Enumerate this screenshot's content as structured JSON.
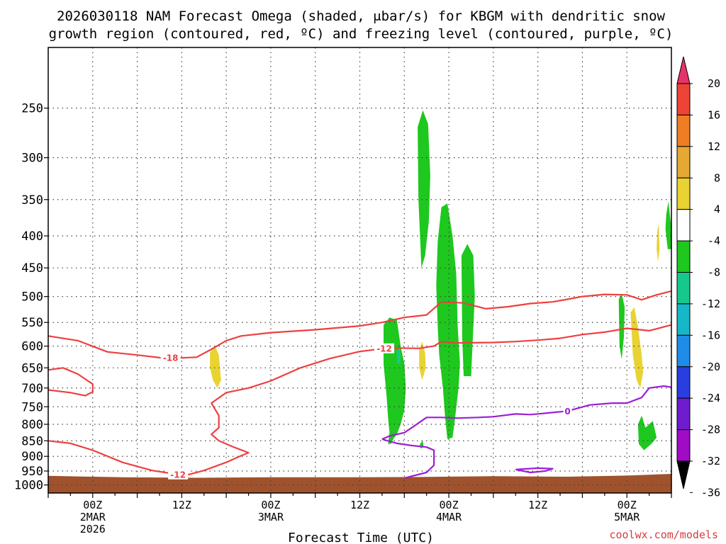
{
  "chart_data": {
    "type": "contour",
    "title": [
      "2026030118 NAM Forecast Omega (shaded, μbar/s) for KBGM with dendritic snow",
      "growth region (contoured, red, ºC) and freezing level (contoured, purple, ºC)"
    ],
    "xlabel": "Forecast Time (UTC)",
    "watermark": "coolwx.com/models",
    "y_axis": {
      "type": "pressure",
      "units": "hPa",
      "range": [
        200,
        1030
      ],
      "ticks": [
        250,
        300,
        350,
        400,
        450,
        500,
        550,
        600,
        650,
        700,
        750,
        800,
        850,
        900,
        950,
        1000
      ]
    },
    "x_axis": {
      "units": "hours since 2026-03-01 18Z",
      "range": [
        0,
        84
      ],
      "ticks": [
        {
          "hour": 6,
          "lines": [
            "00Z",
            "2MAR",
            "2026"
          ]
        },
        {
          "hour": 18,
          "lines": [
            "12Z"
          ]
        },
        {
          "hour": 30,
          "lines": [
            "00Z",
            "3MAR"
          ]
        },
        {
          "hour": 42,
          "lines": [
            "12Z"
          ]
        },
        {
          "hour": 54,
          "lines": [
            "00Z",
            "4MAR"
          ]
        },
        {
          "hour": 66,
          "lines": [
            "12Z"
          ]
        },
        {
          "hour": 78,
          "lines": [
            "00Z",
            "5MAR"
          ]
        }
      ]
    },
    "colorbar": {
      "labels": [
        "20",
        "16",
        "12",
        "8",
        "4",
        "-4",
        "-8",
        "-12",
        "-16",
        "-20",
        "-24",
        "-28",
        "-32",
        "-36"
      ],
      "colors": [
        "#e8336a",
        "#ee4435",
        "#ef7d22",
        "#e5a833",
        "#e8d333",
        "#ffffff",
        "#1ec81e",
        "#17c88c",
        "#16b7c8",
        "#1f8ce8",
        "#2a3ee0",
        "#6f1ccf",
        "#a00bc6",
        "#a6a6a6",
        "#000000"
      ]
    },
    "series": [
      {
        "name": "-18",
        "color": "#ee4040",
        "label_at": [
          16.5,
          626
        ],
        "points": [
          [
            0,
            578
          ],
          [
            4,
            588
          ],
          [
            8,
            613
          ],
          [
            12,
            620
          ],
          [
            16,
            628
          ],
          [
            20,
            625
          ],
          [
            22,
            607
          ],
          [
            24,
            588
          ],
          [
            26,
            578
          ],
          [
            30,
            571
          ],
          [
            36,
            565
          ],
          [
            42,
            557
          ],
          [
            45,
            550
          ],
          [
            48,
            540
          ],
          [
            51,
            535
          ],
          [
            53,
            510
          ],
          [
            56,
            512
          ],
          [
            59,
            523
          ],
          [
            62,
            519
          ],
          [
            65,
            513
          ],
          [
            68,
            510
          ],
          [
            70,
            505
          ],
          [
            72,
            500
          ],
          [
            75,
            496
          ],
          [
            78,
            497
          ],
          [
            80,
            506
          ],
          [
            82,
            497
          ],
          [
            84,
            490
          ]
        ]
      },
      {
        "name": "-12",
        "color": "#ee4040",
        "label_at": [
          45.3,
          605
        ],
        "points": [
          [
            0,
            850
          ],
          [
            3,
            858
          ],
          [
            6,
            880
          ],
          [
            10,
            920
          ],
          [
            14,
            948
          ],
          [
            17,
            960
          ],
          [
            19,
            962
          ],
          [
            21,
            948
          ],
          [
            24,
            920
          ],
          [
            26,
            898
          ],
          [
            27,
            888
          ],
          [
            25,
            870
          ],
          [
            23,
            850
          ],
          [
            22,
            830
          ],
          [
            23,
            810
          ],
          [
            23,
            775
          ],
          [
            22,
            740
          ],
          [
            24,
            712
          ],
          [
            27,
            700
          ],
          [
            30,
            682
          ],
          [
            34,
            650
          ],
          [
            38,
            628
          ],
          [
            42,
            612
          ],
          [
            44,
            608
          ],
          [
            46,
            604
          ],
          [
            50,
            605
          ],
          [
            52,
            600
          ],
          [
            53,
            590
          ],
          [
            55,
            593
          ],
          [
            60,
            592
          ],
          [
            63,
            590
          ],
          [
            66,
            587
          ],
          [
            69,
            583
          ],
          [
            72,
            575
          ],
          [
            75,
            570
          ],
          [
            78,
            562
          ],
          [
            81,
            567
          ],
          [
            84,
            555
          ]
        ]
      },
      {
        "name": "-12",
        "color": "#ee4040",
        "label_at": [
          17.5,
          962
        ],
        "points": [
          [
            0,
            655
          ],
          [
            2,
            650
          ],
          [
            4,
            665
          ],
          [
            6,
            690
          ],
          [
            6,
            710
          ],
          [
            5,
            720
          ],
          [
            3,
            712
          ],
          [
            0,
            705
          ]
        ]
      },
      {
        "name": "0",
        "color": "#9c1fd6",
        "label_at": [
          70,
          762
        ],
        "points": [
          [
            45,
            845
          ],
          [
            46,
            835
          ],
          [
            48,
            825
          ],
          [
            49,
            810
          ],
          [
            51,
            780
          ],
          [
            53,
            780
          ],
          [
            55,
            782
          ],
          [
            58,
            780
          ],
          [
            60,
            778
          ],
          [
            63,
            770
          ],
          [
            65,
            772
          ],
          [
            67,
            768
          ],
          [
            70,
            762
          ],
          [
            73,
            745
          ],
          [
            76,
            740
          ],
          [
            78,
            740
          ],
          [
            80,
            725
          ],
          [
            81,
            700
          ],
          [
            83,
            695
          ],
          [
            84,
            698
          ]
        ]
      },
      {
        "name": "0",
        "color": "#9c1fd6",
        "label_at": null,
        "points": [
          [
            45,
            845
          ],
          [
            47,
            858
          ],
          [
            49,
            865
          ],
          [
            51,
            870
          ],
          [
            52,
            880
          ],
          [
            52,
            900
          ],
          [
            52,
            930
          ],
          [
            51,
            955
          ],
          [
            48,
            975
          ]
        ]
      },
      {
        "name": "0",
        "color": "#9c1fd6",
        "label_at": null,
        "points": [
          [
            63,
            945
          ],
          [
            66,
            940
          ],
          [
            68,
            942
          ],
          [
            67,
            950
          ],
          [
            65,
            955
          ],
          [
            63,
            945
          ]
        ]
      }
    ],
    "regions": [
      {
        "value": -6,
        "color": "#1ec81e",
        "points": [
          [
            49.8,
            268
          ],
          [
            50.5,
            252
          ],
          [
            51.2,
            265
          ],
          [
            51.5,
            320
          ],
          [
            51.3,
            380
          ],
          [
            50.8,
            430
          ],
          [
            50.3,
            450
          ],
          [
            49.9,
            350
          ]
        ]
      },
      {
        "value": -6,
        "color": "#1ec81e",
        "points": [
          [
            52.5,
            408
          ],
          [
            53.0,
            360
          ],
          [
            53.8,
            355
          ],
          [
            54.5,
            400
          ],
          [
            55.0,
            460
          ],
          [
            55.2,
            560
          ],
          [
            55.5,
            640
          ],
          [
            55.3,
            700
          ],
          [
            54.8,
            790
          ],
          [
            54.5,
            840
          ],
          [
            53.8,
            845
          ],
          [
            53.5,
            780
          ],
          [
            53.2,
            700
          ],
          [
            52.7,
            620
          ],
          [
            52.5,
            560
          ],
          [
            52.3,
            480
          ]
        ]
      },
      {
        "value": -6,
        "color": "#1ec81e",
        "points": [
          [
            55.7,
            430
          ],
          [
            56.5,
            412
          ],
          [
            57.3,
            430
          ],
          [
            57.5,
            500
          ],
          [
            57.3,
            560
          ],
          [
            57.0,
            670
          ],
          [
            56.0,
            670
          ],
          [
            55.8,
            580
          ]
        ]
      },
      {
        "value": -6,
        "color": "#1ec81e",
        "points": [
          [
            45.2,
            555
          ],
          [
            46.0,
            540
          ],
          [
            47.0,
            545
          ],
          [
            47.5,
            600
          ],
          [
            48.0,
            640
          ],
          [
            48.2,
            700
          ],
          [
            48.0,
            760
          ],
          [
            47.5,
            800
          ],
          [
            47.0,
            830
          ],
          [
            46.5,
            845
          ],
          [
            46.2,
            860
          ],
          [
            45.8,
            860
          ],
          [
            46.0,
            825
          ],
          [
            45.8,
            780
          ],
          [
            45.6,
            720
          ],
          [
            45.2,
            640
          ]
        ]
      },
      {
        "value": -6,
        "color": "#1ec81e",
        "points": [
          [
            50.1,
            860
          ],
          [
            50.5,
            850
          ],
          [
            50.6,
            870
          ],
          [
            50.2,
            875
          ]
        ]
      },
      {
        "value": -6,
        "color": "#1ec81e",
        "points": [
          [
            76.9,
            505
          ],
          [
            77.3,
            495
          ],
          [
            77.7,
            520
          ],
          [
            77.6,
            580
          ],
          [
            77.3,
            630
          ],
          [
            77.0,
            600
          ]
        ]
      },
      {
        "value": -6,
        "color": "#1ec81e",
        "points": [
          [
            83.3,
            370
          ],
          [
            83.6,
            352
          ],
          [
            84.0,
            390
          ],
          [
            84.0,
            420
          ],
          [
            83.5,
            420
          ],
          [
            83.2,
            390
          ]
        ]
      },
      {
        "value": -6,
        "color": "#1ec81e",
        "points": [
          [
            79.5,
            800
          ],
          [
            80.0,
            775
          ],
          [
            80.5,
            810
          ],
          [
            81.5,
            790
          ],
          [
            82.0,
            840
          ],
          [
            81.3,
            860
          ],
          [
            80.3,
            880
          ],
          [
            79.6,
            860
          ]
        ]
      },
      {
        "value": 6,
        "color": "#e8d333",
        "points": [
          [
            21.8,
            615
          ],
          [
            22.5,
            600
          ],
          [
            23.0,
            620
          ],
          [
            23.3,
            680
          ],
          [
            22.8,
            700
          ],
          [
            22.2,
            680
          ],
          [
            21.8,
            650
          ]
        ]
      },
      {
        "value": 6,
        "color": "#e8d333",
        "points": [
          [
            50.0,
            610
          ],
          [
            50.4,
            590
          ],
          [
            50.8,
            615
          ],
          [
            50.9,
            650
          ],
          [
            50.4,
            680
          ],
          [
            50.0,
            650
          ]
        ]
      },
      {
        "value": 6,
        "color": "#e8d333",
        "points": [
          [
            78.5,
            530
          ],
          [
            79.0,
            520
          ],
          [
            79.5,
            560
          ],
          [
            80.0,
            620
          ],
          [
            80.2,
            660
          ],
          [
            79.8,
            700
          ],
          [
            79.3,
            680
          ],
          [
            78.8,
            620
          ]
        ]
      },
      {
        "value": 6,
        "color": "#e8d333",
        "points": [
          [
            82.1,
            392
          ],
          [
            82.3,
            383
          ],
          [
            82.4,
            420
          ],
          [
            82.2,
            440
          ],
          [
            82.0,
            420
          ]
        ]
      },
      {
        "value": -10,
        "color": "#17c88c",
        "points": [
          [
            47.0,
            610
          ],
          [
            47.4,
            605
          ],
          [
            47.5,
            640
          ],
          [
            47.0,
            640
          ]
        ]
      }
    ]
  }
}
